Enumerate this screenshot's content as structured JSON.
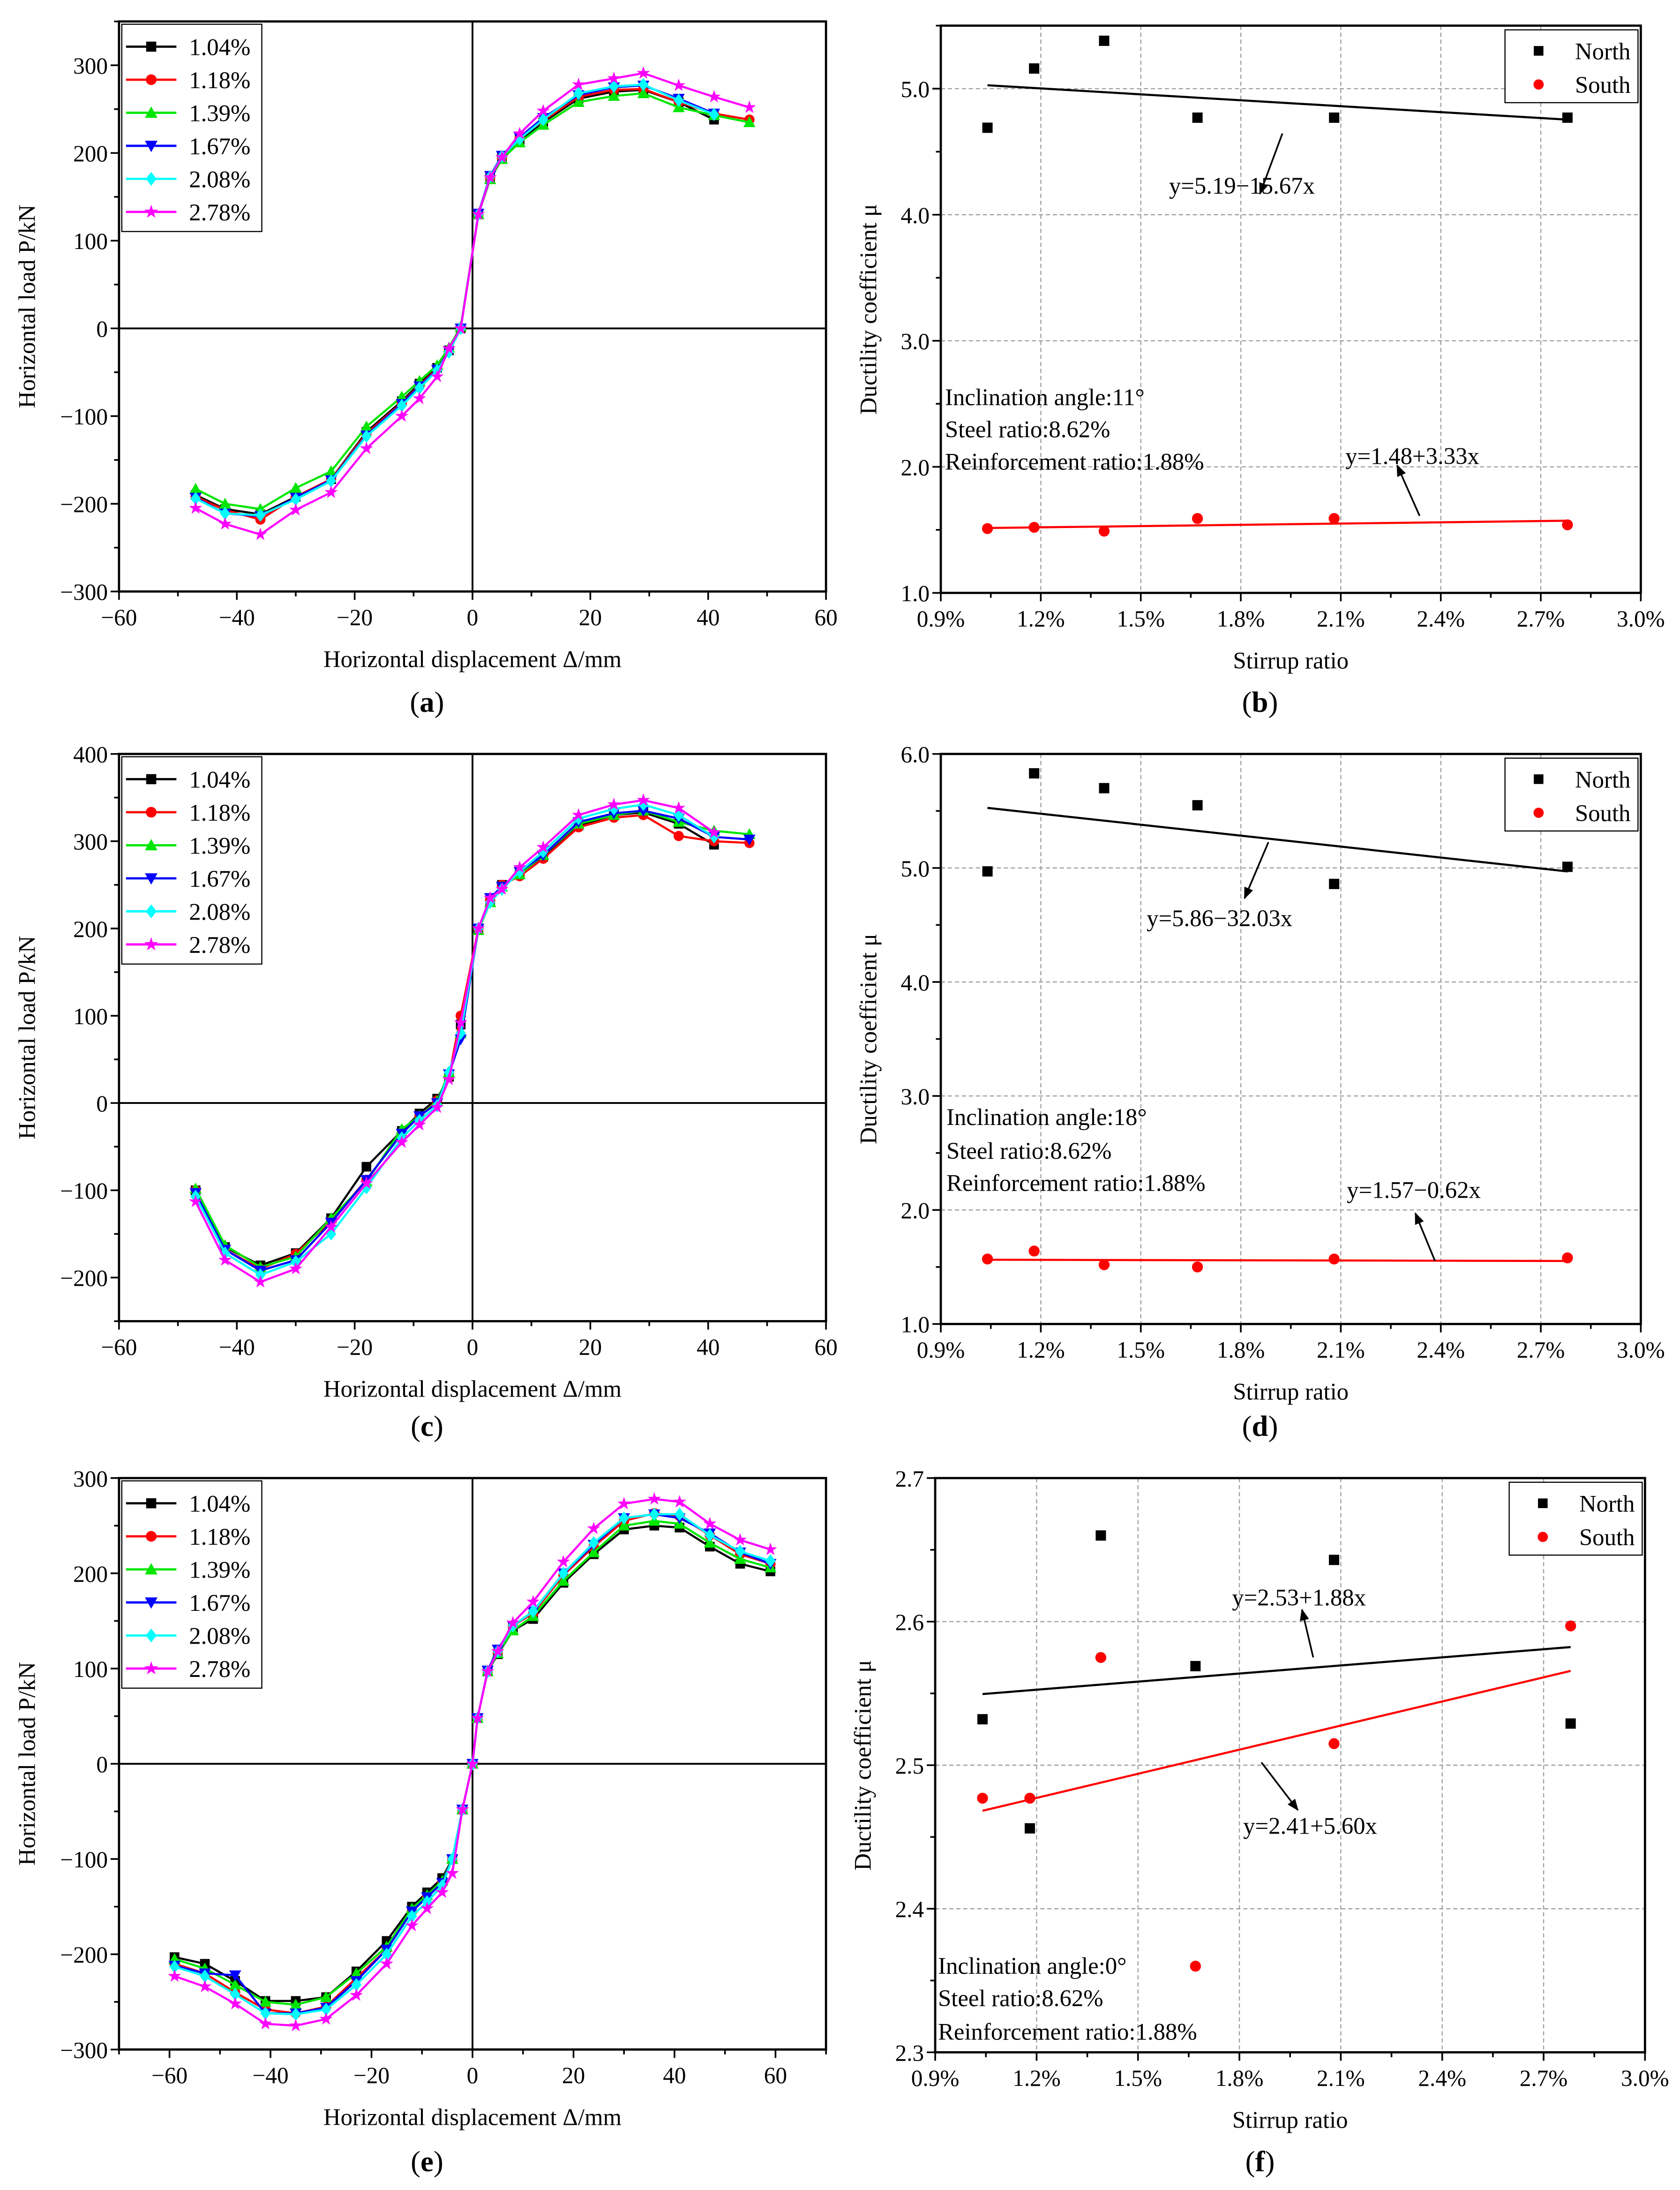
{
  "chart_data": [
    {
      "panel": "a",
      "type": "line",
      "xlabel": "Horizontal displacement Δ/mm",
      "ylabel": "Horizontal load P/kN",
      "xlim": [
        -60,
        60
      ],
      "ylim": [
        -300,
        350
      ],
      "xticks": [
        -60,
        -40,
        -20,
        0,
        20,
        40,
        60
      ],
      "xtick_labels": [
        "−60",
        "−40",
        "−20",
        "0",
        "20",
        "40",
        "60"
      ],
      "yticks": [
        -300,
        -200,
        -100,
        0,
        100,
        200,
        300
      ],
      "ytick_labels": [
        "−300",
        "−200",
        "−100",
        "0",
        "100",
        "200",
        "300"
      ],
      "legend_position": "top-left",
      "x": [
        -47,
        -42,
        -36,
        -30,
        -24,
        -18,
        -12,
        -9,
        -6,
        -4,
        -2,
        1,
        3,
        5,
        8,
        12,
        18,
        24,
        29,
        35,
        41,
        47
      ],
      "series": [
        {
          "name": "1.04%",
          "color": "#000000",
          "marker": "square",
          "values": [
            -190,
            -206,
            -212,
            -192,
            -172,
            -118,
            -83,
            -63,
            -45,
            -25,
            0,
            130,
            172,
            195,
            215,
            235,
            262,
            270,
            272,
            258,
            238,
            null
          ]
        },
        {
          "name": "1.18%",
          "color": "#ff0000",
          "marker": "circle",
          "values": [
            -192,
            -207,
            -218,
            -192,
            -172,
            -120,
            -85,
            -65,
            -46,
            -25,
            0,
            130,
            172,
            195,
            217,
            237,
            264,
            272,
            273,
            258,
            245,
            238
          ]
        },
        {
          "name": "1.39%",
          "color": "#00e600",
          "marker": "triangle-up",
          "values": [
            -183,
            -200,
            -206,
            -182,
            -163,
            -112,
            -78,
            -60,
            -42,
            -22,
            2,
            130,
            170,
            193,
            212,
            232,
            258,
            265,
            268,
            252,
            243,
            235
          ]
        },
        {
          "name": "1.67%",
          "color": "#0000ff",
          "marker": "triangle-down",
          "values": [
            -193,
            -211,
            -214,
            -193,
            -173,
            -122,
            -86,
            -66,
            -47,
            -26,
            0,
            131,
            174,
            197,
            218,
            240,
            266,
            275,
            277,
            262,
            245,
            null
          ]
        },
        {
          "name": "2.08%",
          "color": "#00ffff",
          "marker": "diamond",
          "values": [
            -194,
            -211,
            -213,
            -195,
            -174,
            -123,
            -88,
            -68,
            -48,
            -27,
            0,
            130,
            173,
            196,
            216,
            238,
            268,
            276,
            278,
            260,
            244,
            null
          ]
        },
        {
          "name": "2.78%",
          "color": "#ff00ff",
          "marker": "star",
          "values": [
            -205,
            -223,
            -235,
            -207,
            -187,
            -137,
            -100,
            -80,
            -55,
            -23,
            0,
            130,
            172,
            195,
            222,
            248,
            278,
            285,
            291,
            277,
            264,
            252
          ]
        }
      ]
    },
    {
      "panel": "b",
      "type": "scatter",
      "xlabel": "Stirrup ratio",
      "ylabel": "Ductility coefficient μ",
      "xlim": [
        0.9,
        3.0
      ],
      "ylim": [
        1.0,
        5.5
      ],
      "xticks": [
        0.9,
        1.2,
        1.5,
        1.8,
        2.1,
        2.4,
        2.7,
        3.0
      ],
      "xtick_labels": [
        "0.9%",
        "1.2%",
        "1.5%",
        "1.8%",
        "2.1%",
        "2.4%",
        "2.7%",
        "3.0%"
      ],
      "yticks": [
        1,
        2,
        3,
        4,
        5
      ],
      "ytick_labels": [
        "1.0",
        "2.0",
        "3.0",
        "4.0",
        "5.0"
      ],
      "grid": true,
      "legend_position": "top-right",
      "x": [
        1.04,
        1.18,
        1.39,
        1.67,
        2.08,
        2.78
      ],
      "series": [
        {
          "name": "North",
          "color": "#000000",
          "marker": "square",
          "values": [
            4.69,
            5.16,
            5.38,
            4.77,
            4.77,
            4.77
          ],
          "fit": {
            "intercept": 5.19,
            "slope": -15.67,
            "equation": "y=5.19−15.67x"
          }
        },
        {
          "name": "South",
          "color": "#ff0000",
          "marker": "circle",
          "values": [
            1.51,
            1.52,
            1.49,
            1.59,
            1.59,
            1.54
          ],
          "fit": {
            "intercept": 1.48,
            "slope": 3.33,
            "equation": "y=1.48+3.33x"
          }
        }
      ],
      "annotations": [
        "Inclination angle:11°",
        "Steel ratio:8.62%",
        "Reinforcement ratio:1.88%"
      ]
    },
    {
      "panel": "c",
      "type": "line",
      "xlabel": "Horizontal displacement Δ/mm",
      "ylabel": "Horizontal load P/kN",
      "xlim": [
        -60,
        60
      ],
      "ylim": [
        -250,
        400
      ],
      "xticks": [
        -60,
        -40,
        -20,
        0,
        20,
        40,
        60
      ],
      "xtick_labels": [
        "−60",
        "−40",
        "−20",
        "0",
        "20",
        "40",
        "60"
      ],
      "yticks": [
        -200,
        -100,
        0,
        100,
        200,
        300,
        400
      ],
      "ytick_labels": [
        "−200",
        "−100",
        "0",
        "100",
        "200",
        "300",
        "400"
      ],
      "legend_position": "top-left",
      "x": [
        -47,
        -42,
        -36,
        -30,
        -24,
        -18,
        -12,
        -9,
        -6,
        -4,
        -2,
        1,
        3,
        5,
        8,
        12,
        18,
        24,
        29,
        35,
        41,
        47
      ],
      "series": [
        {
          "name": "1.04%",
          "color": "#000000",
          "marker": "square",
          "values": [
            -100,
            -165,
            -186,
            -172,
            -132,
            -73,
            -32,
            -12,
            5,
            30,
            90,
            200,
            232,
            250,
            262,
            282,
            318,
            330,
            333,
            320,
            296,
            null
          ]
        },
        {
          "name": "1.18%",
          "color": "#ff0000",
          "marker": "circle",
          "values": [
            -100,
            -168,
            -190,
            -173,
            -135,
            -88,
            -35,
            -15,
            3,
            30,
            100,
            200,
            232,
            250,
            260,
            280,
            316,
            327,
            330,
            306,
            300,
            298
          ]
        },
        {
          "name": "1.39%",
          "color": "#00e600",
          "marker": "triangle-up",
          "values": [
            -98,
            -163,
            -188,
            -176,
            -132,
            -90,
            -30,
            -15,
            2,
            35,
            80,
            198,
            230,
            248,
            262,
            284,
            320,
            330,
            335,
            322,
            312,
            308
          ]
        },
        {
          "name": "1.67%",
          "color": "#0000ff",
          "marker": "triangle-down",
          "values": [
            -103,
            -168,
            -192,
            -180,
            -137,
            -88,
            -35,
            -15,
            0,
            33,
            73,
            200,
            235,
            248,
            265,
            284,
            322,
            332,
            335,
            326,
            305,
            302
          ]
        },
        {
          "name": "2.08%",
          "color": "#00ffff",
          "marker": "diamond",
          "values": [
            -107,
            -172,
            -197,
            -182,
            -150,
            -97,
            -40,
            -20,
            -3,
            35,
            80,
            200,
            230,
            245,
            265,
            288,
            326,
            337,
            342,
            330,
            305,
            null
          ]
        },
        {
          "name": "2.78%",
          "color": "#ff00ff",
          "marker": "star",
          "values": [
            -113,
            -180,
            -205,
            -190,
            -142,
            -92,
            -45,
            -25,
            -5,
            27,
            92,
            200,
            235,
            245,
            270,
            293,
            330,
            342,
            347,
            338,
            310,
            null
          ]
        }
      ]
    },
    {
      "panel": "d",
      "type": "scatter",
      "xlabel": "Stirrup ratio",
      "ylabel": "Ductility coefficient μ",
      "xlim": [
        0.9,
        3.0
      ],
      "ylim": [
        1.0,
        6.0
      ],
      "xticks": [
        0.9,
        1.2,
        1.5,
        1.8,
        2.1,
        2.4,
        2.7,
        3.0
      ],
      "xtick_labels": [
        "0.9%",
        "1.2%",
        "1.5%",
        "1.8%",
        "2.1%",
        "2.4%",
        "2.7%",
        "3.0%"
      ],
      "yticks": [
        1,
        2,
        3,
        4,
        5,
        6
      ],
      "ytick_labels": [
        "1.0",
        "2.0",
        "3.0",
        "4.0",
        "5.0",
        "6.0"
      ],
      "grid": true,
      "legend_position": "top-right",
      "x": [
        1.04,
        1.18,
        1.39,
        1.67,
        2.08,
        2.78
      ],
      "series": [
        {
          "name": "North",
          "color": "#000000",
          "marker": "square",
          "values": [
            4.97,
            5.83,
            5.7,
            5.55,
            4.86,
            5.01
          ],
          "fit": {
            "intercept": 5.86,
            "slope": -32.03,
            "equation": "y=5.86−32.03x"
          }
        },
        {
          "name": "South",
          "color": "#ff0000",
          "marker": "circle",
          "values": [
            1.57,
            1.64,
            1.52,
            1.5,
            1.57,
            1.58
          ],
          "fit": {
            "intercept": 1.57,
            "slope": -0.62,
            "equation": "y=1.57−0.62x"
          }
        }
      ],
      "annotations": [
        "Inclination angle:18°",
        "Steel ratio:8.62%",
        "Reinforcement ratio:1.88%"
      ]
    },
    {
      "panel": "e",
      "type": "line",
      "xlabel": "Horizontal displacement Δ/mm",
      "ylabel": "Horizontal load P/kN",
      "xlim": [
        -70,
        70
      ],
      "ylim": [
        -300,
        300
      ],
      "xticks": [
        -60,
        -40,
        -20,
        0,
        20,
        40,
        60
      ],
      "xtick_labels": [
        "−60",
        "−40",
        "−20",
        "0",
        "20",
        "40",
        "60"
      ],
      "yticks": [
        -300,
        -200,
        -100,
        0,
        100,
        200,
        300
      ],
      "ytick_labels": [
        "−300",
        "−200",
        "−100",
        "0",
        "100",
        "200",
        "300"
      ],
      "legend_position": "top-left",
      "x": [
        -59,
        -53,
        -47,
        -41,
        -35,
        -29,
        -23,
        -17,
        -12,
        -9,
        -6,
        -4,
        -2,
        0,
        1,
        3,
        5,
        8,
        12,
        18,
        24,
        30,
        36,
        41,
        47,
        53,
        59
      ],
      "series": [
        {
          "name": "1.04%",
          "color": "#000000",
          "marker": "square",
          "values": [
            -203,
            -210,
            -228,
            -249,
            -249,
            -245,
            -218,
            -186,
            -150,
            -135,
            -120,
            -100,
            -48,
            0,
            48,
            97,
            115,
            140,
            152,
            190,
            220,
            246,
            250,
            248,
            228,
            210,
            202
          ]
        },
        {
          "name": "1.18%",
          "color": "#ff0000",
          "marker": "circle",
          "values": [
            -210,
            -220,
            -240,
            -258,
            -262,
            -255,
            -225,
            -195,
            -155,
            -140,
            -125,
            -100,
            -48,
            0,
            48,
            97,
            118,
            145,
            158,
            198,
            228,
            255,
            263,
            260,
            240,
            220,
            210
          ]
        },
        {
          "name": "1.39%",
          "color": "#00e600",
          "marker": "triangle-up",
          "values": [
            -205,
            -215,
            -232,
            -250,
            -253,
            -245,
            -220,
            -192,
            -152,
            -138,
            -123,
            -100,
            -48,
            0,
            48,
            97,
            116,
            140,
            155,
            192,
            222,
            250,
            255,
            252,
            232,
            215,
            206
          ]
        },
        {
          "name": "1.67%",
          "color": "#0000ff",
          "marker": "triangle-down",
          "values": [
            -212,
            -220,
            -222,
            -262,
            -262,
            -256,
            -228,
            -195,
            -155,
            -140,
            -125,
            -100,
            -48,
            0,
            48,
            98,
            120,
            145,
            160,
            200,
            230,
            258,
            262,
            258,
            242,
            222,
            210
          ]
        },
        {
          "name": "2.08%",
          "color": "#00ffff",
          "marker": "diamond",
          "values": [
            -213,
            -223,
            -242,
            -262,
            -263,
            -258,
            -232,
            -200,
            -160,
            -145,
            -128,
            -100,
            -48,
            0,
            48,
            97,
            118,
            145,
            160,
            200,
            232,
            258,
            262,
            262,
            240,
            223,
            213
          ]
        },
        {
          "name": "2.78%",
          "color": "#ff00ff",
          "marker": "star",
          "values": [
            -223,
            -234,
            -252,
            -273,
            -275,
            -268,
            -243,
            -210,
            -170,
            -152,
            -135,
            -115,
            -48,
            0,
            48,
            97,
            118,
            148,
            170,
            212,
            247,
            273,
            278,
            275,
            252,
            235,
            225
          ]
        }
      ]
    },
    {
      "panel": "f",
      "type": "scatter",
      "xlabel": "Stirrup ratio",
      "ylabel": "Ductility coefficient μ",
      "xlim": [
        0.9,
        3.0
      ],
      "ylim": [
        2.3,
        2.7
      ],
      "xticks": [
        0.9,
        1.2,
        1.5,
        1.8,
        2.1,
        2.4,
        2.7,
        3.0
      ],
      "xtick_labels": [
        "0.9%",
        "1.2%",
        "1.5%",
        "1.8%",
        "2.1%",
        "2.4%",
        "2.7%",
        "3.0%"
      ],
      "yticks": [
        2.3,
        2.4,
        2.5,
        2.6,
        2.7
      ],
      "ytick_labels": [
        "2.3",
        "2.4",
        "2.5",
        "2.6",
        "2.7"
      ],
      "grid": true,
      "legend_position": "top-right",
      "x": [
        1.04,
        1.18,
        1.39,
        1.67,
        2.08,
        2.78
      ],
      "series": [
        {
          "name": "North",
          "color": "#000000",
          "marker": "square",
          "values": [
            2.532,
            2.456,
            2.66,
            2.569,
            2.643,
            2.529
          ],
          "fit": {
            "intercept": 2.53,
            "slope": 1.88,
            "equation": "y=2.53+1.88x"
          }
        },
        {
          "name": "South",
          "color": "#ff0000",
          "marker": "circle",
          "values": [
            2.477,
            2.477,
            2.575,
            2.36,
            2.515,
            2.597
          ],
          "fit": {
            "intercept": 2.41,
            "slope": 5.6,
            "equation": "y=2.41+5.60x"
          }
        }
      ],
      "annotations": [
        "Inclination angle:0°",
        "Steel ratio:8.62%",
        "Reinforcement ratio:1.88%"
      ]
    }
  ]
}
